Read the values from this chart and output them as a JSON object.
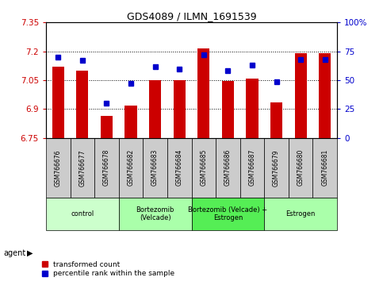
{
  "title": "GDS4089 / ILMN_1691539",
  "samples": [
    "GSM766676",
    "GSM766677",
    "GSM766678",
    "GSM766682",
    "GSM766683",
    "GSM766684",
    "GSM766685",
    "GSM766686",
    "GSM766687",
    "GSM766679",
    "GSM766680",
    "GSM766681"
  ],
  "bar_values": [
    7.12,
    7.1,
    6.865,
    6.92,
    7.05,
    7.05,
    7.215,
    7.045,
    7.06,
    6.935,
    7.19,
    7.19
  ],
  "dot_values": [
    70,
    67,
    30,
    47,
    62,
    60,
    72,
    58,
    63,
    49,
    68,
    68
  ],
  "bar_color": "#cc0000",
  "dot_color": "#0000cc",
  "ylim_left": [
    6.75,
    7.35
  ],
  "ylim_right": [
    0,
    100
  ],
  "yticks_left": [
    6.75,
    6.9,
    7.05,
    7.2,
    7.35
  ],
  "yticks_right": [
    0,
    25,
    50,
    75,
    100
  ],
  "ytick_labels_left": [
    "6.75",
    "6.9",
    "7.05",
    "7.2",
    "7.35"
  ],
  "ytick_labels_right": [
    "0",
    "25",
    "50",
    "75",
    "100%"
  ],
  "hlines": [
    6.9,
    7.05,
    7.2
  ],
  "bar_baseline": 6.75,
  "groups": [
    {
      "label": "control",
      "start": 0,
      "end": 3,
      "color": "#ccffcc"
    },
    {
      "label": "Bortezomib\n(Velcade)",
      "start": 3,
      "end": 6,
      "color": "#aaffaa"
    },
    {
      "label": "Bortezomib (Velcade) +\nEstrogen",
      "start": 6,
      "end": 9,
      "color": "#55ee55"
    },
    {
      "label": "Estrogen",
      "start": 9,
      "end": 12,
      "color": "#aaffaa"
    }
  ],
  "agent_label": "agent",
  "legend_bar_label": "transformed count",
  "legend_dot_label": "percentile rank within the sample",
  "xtick_bg": "#cccccc"
}
